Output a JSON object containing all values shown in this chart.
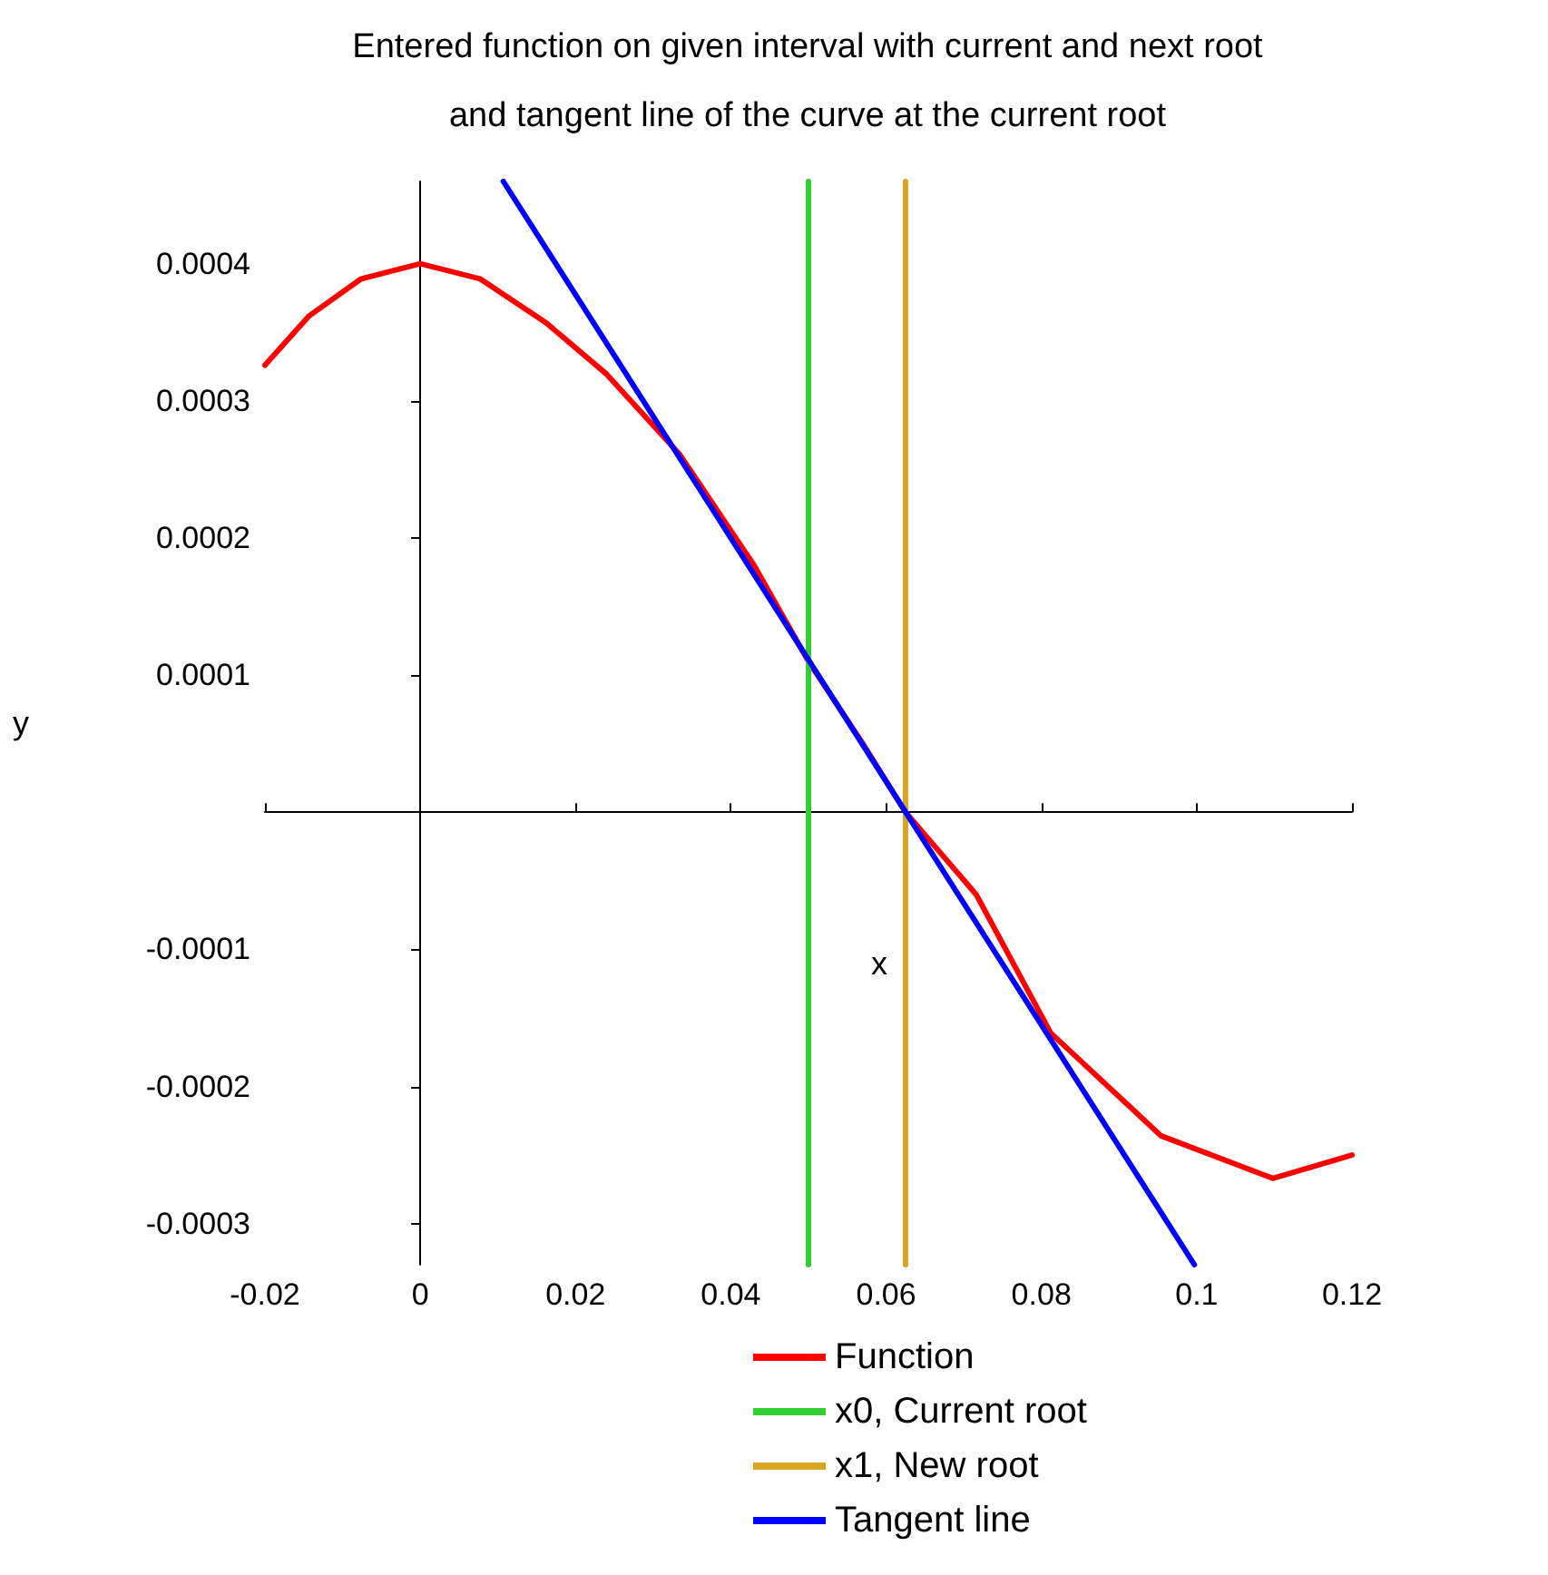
{
  "chart_data": {
    "type": "line",
    "title": "Entered function on given interval with current and next root\nand tangent line of the curve at the current root",
    "xlabel": "x",
    "ylabel": "y",
    "xlim": [
      -0.02,
      0.12
    ],
    "ylim": [
      -0.00033,
      0.00046
    ],
    "xticks": [
      -0.02,
      0,
      0.02,
      0.04,
      0.06,
      0.08,
      0.1,
      0.12
    ],
    "yticks": [
      -0.0003,
      -0.0002,
      -0.0001,
      0.0001,
      0.0002,
      0.0003,
      0.0004
    ],
    "legend": "bottom",
    "marker": "none",
    "line_style": "solid",
    "series": [
      {
        "name": "Function",
        "color": "#ff0000",
        "x": [
          -0.02,
          -0.0143,
          -0.0076,
          0,
          0.0077,
          0.0162,
          0.0239,
          0.0334,
          0.043,
          0.05,
          0.057,
          0.0625,
          0.0716,
          0.0812,
          0.0954,
          0.1098,
          0.12
        ],
        "values": [
          0.000326,
          0.000362,
          0.000389,
          0.0004,
          0.000389,
          0.000357,
          0.00032,
          0.000261,
          0.00018,
          0.00011,
          5e-05,
          0,
          -6e-05,
          -0.000161,
          -0.000236,
          -0.000267,
          -0.00025
        ]
      },
      {
        "name": "x0, Current root",
        "color": "#33cc33",
        "x": [
          0.05,
          0.05
        ],
        "values": [
          -0.00033,
          0.00046
        ]
      },
      {
        "name": "x1, New root",
        "color": "#daa520",
        "x": [
          0.0625,
          0.0625
        ],
        "values": [
          -0.00033,
          0.00046
        ]
      },
      {
        "name": "Tangent line",
        "color": "#0000ff",
        "x": [
          0.0107,
          0.0997
        ],
        "values": [
          0.00046,
          -0.00033
        ]
      }
    ]
  }
}
